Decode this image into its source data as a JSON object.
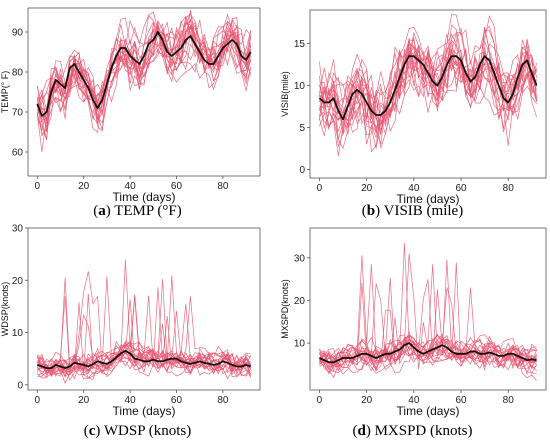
{
  "chart_data": [
    {
      "id": "a",
      "type": "line",
      "caption_letter": "a",
      "caption_text": "TEMP (°F)",
      "xlabel": "Time (days)",
      "ylabel": "TEMP(° F)",
      "xlim": [
        -4,
        96
      ],
      "ylim": [
        54,
        96
      ],
      "xticks": [
        0,
        20,
        40,
        60,
        80
      ],
      "yticks": [
        60,
        70,
        80,
        90
      ],
      "grid": false,
      "mean_series": {
        "color": "#111111",
        "x": [
          0,
          2,
          4,
          6,
          8,
          10,
          12,
          14,
          16,
          18,
          20,
          22,
          24,
          26,
          28,
          30,
          32,
          34,
          36,
          38,
          40,
          42,
          44,
          46,
          48,
          50,
          52,
          54,
          56,
          58,
          60,
          62,
          64,
          66,
          68,
          70,
          72,
          74,
          76,
          78,
          80,
          82,
          84,
          86,
          88,
          90,
          92
        ],
        "y": [
          72,
          69,
          70,
          75,
          78,
          77,
          76,
          81,
          82,
          80,
          78,
          76,
          73,
          71,
          73,
          77,
          81,
          84,
          86,
          86,
          84,
          83,
          82,
          84,
          87,
          88,
          90,
          88,
          85,
          84,
          85,
          86,
          88,
          89,
          87,
          85,
          83,
          82,
          82,
          84,
          86,
          87,
          88,
          87,
          84,
          83,
          85
        ]
      },
      "sample_series": {
        "color": "#e8546e",
        "count": 20,
        "amplitude": 8
      }
    },
    {
      "id": "b",
      "type": "line",
      "caption_letter": "b",
      "caption_text": "VISIB (mile)",
      "xlabel": "Time (days)",
      "ylabel": "VISIB(mile)",
      "xlim": [
        -4,
        96
      ],
      "ylim": [
        -1,
        19
      ],
      "xticks": [
        0,
        20,
        40,
        60,
        80
      ],
      "yticks": [
        0,
        5,
        10,
        15
      ],
      "grid": false,
      "mean_series": {
        "color": "#111111",
        "x": [
          0,
          2,
          4,
          6,
          8,
          10,
          12,
          14,
          16,
          18,
          20,
          22,
          24,
          26,
          28,
          30,
          32,
          34,
          36,
          38,
          40,
          42,
          44,
          46,
          48,
          50,
          52,
          54,
          56,
          58,
          60,
          62,
          64,
          66,
          68,
          70,
          72,
          74,
          76,
          78,
          80,
          82,
          84,
          86,
          88,
          90,
          92
        ],
        "y": [
          8.5,
          8,
          8,
          8.5,
          7,
          6,
          7.5,
          9,
          9.5,
          9,
          8,
          7,
          6.5,
          6.5,
          7,
          8,
          9.5,
          11,
          12.5,
          13.5,
          13.5,
          13,
          12.5,
          11.5,
          10.5,
          10,
          11,
          12.5,
          13.5,
          13.5,
          13,
          11.5,
          10.5,
          11,
          12.5,
          13.5,
          13,
          11.5,
          10,
          8.5,
          8,
          9,
          11,
          12.5,
          13,
          11.5,
          10
        ]
      },
      "sample_series": {
        "color": "#e8546e",
        "count": 20,
        "amplitude": 5
      }
    },
    {
      "id": "c",
      "type": "line",
      "caption_letter": "c",
      "caption_text": "WDSP (knots)",
      "xlabel": "Time (days)",
      "ylabel": "WDSP(knots)",
      "xlim": [
        -4,
        96
      ],
      "ylim": [
        -1,
        30
      ],
      "xticks": [
        0,
        20,
        40,
        60,
        80
      ],
      "yticks": [
        0,
        10,
        20,
        30
      ],
      "grid": false,
      "mean_series": {
        "color": "#111111",
        "x": [
          0,
          2,
          4,
          6,
          8,
          10,
          12,
          14,
          16,
          18,
          20,
          22,
          24,
          26,
          28,
          30,
          32,
          34,
          36,
          38,
          40,
          42,
          44,
          46,
          48,
          50,
          52,
          54,
          56,
          58,
          60,
          62,
          64,
          66,
          68,
          70,
          72,
          74,
          76,
          78,
          80,
          82,
          84,
          86,
          88,
          90,
          92
        ],
        "y": [
          3.8,
          3.5,
          3.2,
          3.2,
          3.8,
          3.5,
          3.2,
          3.5,
          4.2,
          4,
          3.8,
          3.5,
          4,
          4.5,
          4.2,
          4,
          4.5,
          5.2,
          6,
          6.5,
          6,
          5,
          4.8,
          4.5,
          4.5,
          4.8,
          4.5,
          4.5,
          4.8,
          5,
          5,
          4.5,
          4.2,
          4,
          4.2,
          4.5,
          4.2,
          4,
          3.8,
          4,
          4.5,
          4.2,
          3.8,
          3.5,
          3.5,
          3.8,
          3.5
        ]
      },
      "sample_series": {
        "color": "#e8546e",
        "count": 20,
        "amplitude": 3
      }
    },
    {
      "id": "d",
      "type": "line",
      "caption_letter": "d",
      "caption_text": "MXSPD (knots)",
      "xlabel": "Time (days)",
      "ylabel": "MXSPD(knots)",
      "xlim": [
        -4,
        96
      ],
      "ylim": [
        -1,
        37
      ],
      "xticks": [
        0,
        20,
        40,
        60,
        80
      ],
      "yticks": [
        10,
        20,
        30
      ],
      "grid": false,
      "mean_series": {
        "color": "#111111",
        "x": [
          0,
          2,
          4,
          6,
          8,
          10,
          12,
          14,
          16,
          18,
          20,
          22,
          24,
          26,
          28,
          30,
          32,
          34,
          36,
          38,
          40,
          42,
          44,
          46,
          48,
          50,
          52,
          54,
          56,
          58,
          60,
          62,
          64,
          66,
          68,
          70,
          72,
          74,
          76,
          78,
          80,
          82,
          84,
          86,
          88,
          90,
          92
        ],
        "y": [
          6.5,
          6,
          5.5,
          5.5,
          6,
          6.5,
          6.5,
          6.5,
          7,
          7.5,
          7.5,
          7,
          6.5,
          7,
          7.5,
          7.5,
          8,
          8.5,
          9.5,
          10,
          9,
          8,
          7.5,
          8,
          8.5,
          9,
          9.5,
          9,
          8,
          7.5,
          7.5,
          7.5,
          8,
          8,
          7.5,
          7.5,
          7.8,
          7.5,
          7,
          7,
          7.5,
          7.5,
          7,
          6.5,
          6,
          6.2,
          6
        ]
      },
      "sample_series": {
        "color": "#e8546e",
        "count": 20,
        "amplitude": 4
      }
    }
  ]
}
